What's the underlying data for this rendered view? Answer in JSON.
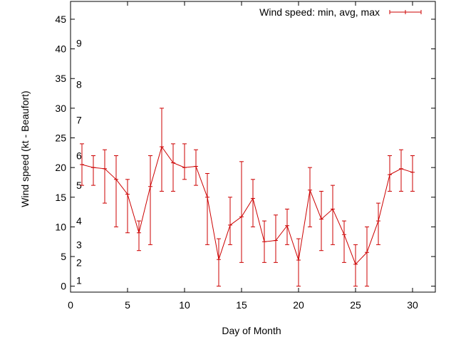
{
  "chart_data": {
    "type": "line",
    "xlabel": "Day of Month",
    "ylabel": "Wind speed (kt - Beaufort)",
    "xlim": [
      0,
      32
    ],
    "ylim": [
      -1,
      48
    ],
    "xticks": [
      0,
      5,
      10,
      15,
      20,
      25,
      30
    ],
    "yticks": [
      0,
      5,
      10,
      15,
      20,
      25,
      30,
      35,
      40,
      45
    ],
    "grid": false,
    "legend_position": "top-right",
    "series_color": "#cc0000",
    "series": [
      {
        "name": "Wind speed: min, avg, max",
        "x": [
          1,
          2,
          3,
          4,
          5,
          6,
          7,
          8,
          9,
          10,
          11,
          12,
          13,
          14,
          15,
          16,
          17,
          18,
          19,
          20,
          21,
          22,
          23,
          24,
          25,
          26,
          27,
          28,
          29,
          30
        ],
        "avg": [
          20.5,
          20,
          19.8,
          18,
          15.5,
          9,
          16.8,
          23.5,
          20.8,
          20,
          20.2,
          15,
          4.5,
          10.3,
          11.7,
          14.8,
          7.5,
          7.7,
          10.2,
          4.4,
          16.2,
          11.3,
          13,
          8.7,
          3.7,
          5.7,
          11,
          18.8,
          19.8,
          19.2
        ],
        "min": [
          17,
          17,
          14,
          10,
          9,
          6,
          7,
          16,
          16,
          18,
          17,
          7,
          0,
          7,
          4,
          10,
          4,
          4,
          7,
          0,
          10,
          6,
          7,
          4,
          0,
          0,
          7,
          16,
          16,
          16
        ],
        "max": [
          24,
          22,
          23,
          22,
          18,
          11,
          22,
          30,
          24,
          24,
          23,
          19,
          8,
          15,
          21,
          18,
          11,
          12,
          13,
          8,
          20,
          16,
          17,
          11,
          7,
          10,
          14,
          22,
          23,
          22
        ]
      }
    ],
    "beaufort_labels": [
      {
        "label": "1",
        "value": 1
      },
      {
        "label": "2",
        "value": 4
      },
      {
        "label": "3",
        "value": 7
      },
      {
        "label": "4",
        "value": 11
      },
      {
        "label": "5",
        "value": 17
      },
      {
        "label": "6",
        "value": 22
      },
      {
        "label": "7",
        "value": 28
      },
      {
        "label": "8",
        "value": 34
      },
      {
        "label": "9",
        "value": 41
      }
    ]
  }
}
